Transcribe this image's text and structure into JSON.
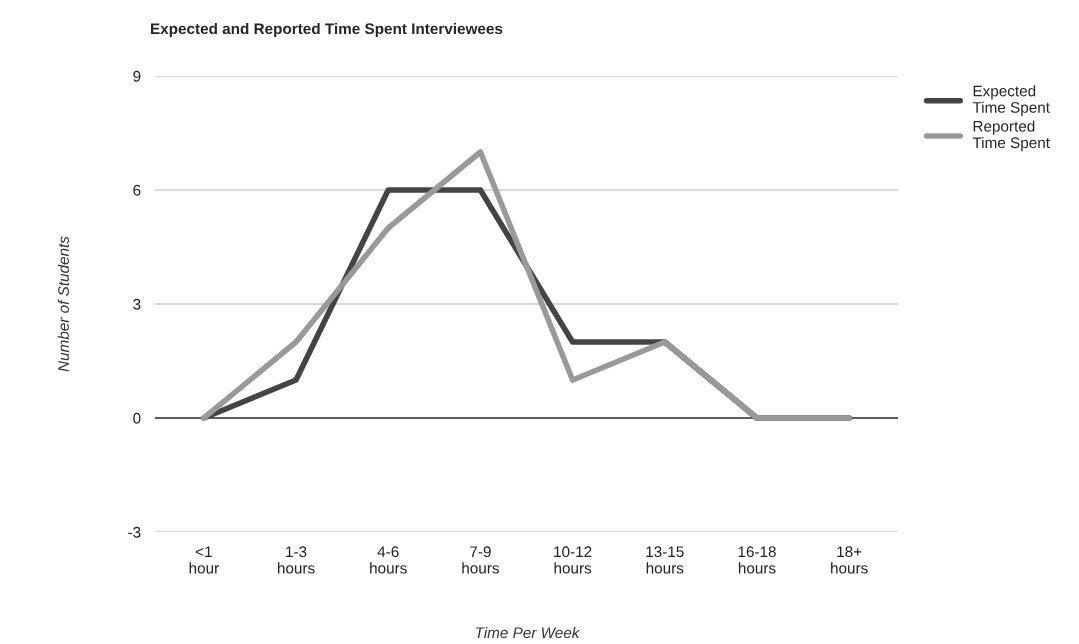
{
  "chart_data": {
    "type": "line",
    "title": "Expected and Reported Time Spent Interviewees",
    "xlabel": "Time Per Week",
    "ylabel": "Number of Students",
    "categories": [
      "<1 hour",
      "1-3 hours",
      "4-6 hours",
      "7-9 hours",
      "10-12 hours",
      "13-15 hours",
      "16-18 hours",
      "18+ hours"
    ],
    "series": [
      {
        "name": "Expected Time Spent",
        "color": "#444444",
        "values": [
          0,
          1,
          6,
          6,
          2,
          2,
          0,
          0
        ]
      },
      {
        "name": "Reported Time Spent",
        "color": "#999999",
        "values": [
          0,
          2,
          5,
          7,
          1,
          2,
          0,
          0
        ]
      }
    ],
    "ylim": [
      -3,
      9
    ],
    "yticks": [
      -3,
      0,
      3,
      6,
      9
    ],
    "grid": "y",
    "legend": "top right",
    "marker": "none",
    "line_style": "solid"
  }
}
